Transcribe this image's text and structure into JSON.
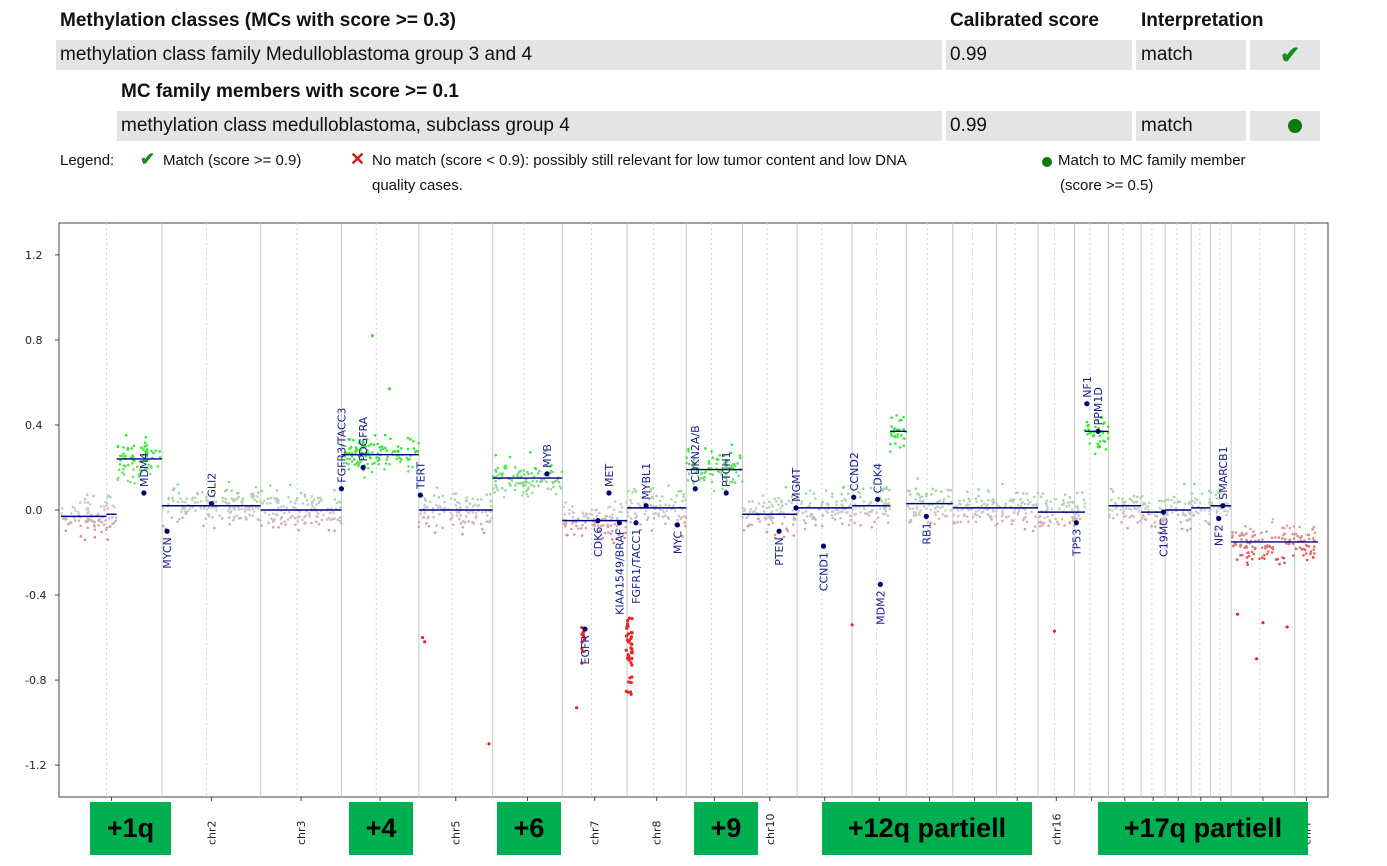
{
  "table": {
    "header_class": "Methylation classes (MCs with score >= 0.3)",
    "header_score": "Calibrated score",
    "header_interp": "Interpretation",
    "row1_class": "methylation class family Medulloblastoma group 3 and 4",
    "row1_score": "0.99",
    "row1_interp": "match",
    "sub_header": "MC family members with score >= 0.1",
    "row2_class": "methylation class medulloblastoma, subclass group 4",
    "row2_score": "0.99",
    "row2_interp": "match"
  },
  "legend": {
    "label": "Legend:",
    "match": "Match (score >= 0.9)",
    "nomatch_1": "No match (score < 0.9): possibly still relevant for low tumor content and low DNA",
    "nomatch_2": "quality cases.",
    "member_1": "Match to MC family member",
    "member_2": "(score >= 0.5)"
  },
  "colors": {
    "gain": "#33dd33",
    "loss": "#ee2222",
    "segment": "#000080",
    "annotation": "#00b050"
  },
  "annotations": [
    "+1q",
    "+4",
    "+6",
    "+9",
    "+12q partiell",
    "+17q partiell"
  ],
  "chart_data": {
    "type": "scatter",
    "ylim": [
      -1.35,
      1.35
    ],
    "yticks": [
      1.2,
      0.8,
      0.4,
      0.0,
      -0.4,
      -0.8,
      -1.2
    ],
    "ytick_labels": [
      "1.2",
      "0.8",
      "0.4",
      "0.0",
      "-0.4",
      "-0.8",
      "-1.2"
    ],
    "chromosomes": [
      {
        "name": "chr1",
        "size": 248,
        "label": ""
      },
      {
        "name": "chr2",
        "size": 242,
        "label": "chr2"
      },
      {
        "name": "chr3",
        "size": 198,
        "label": "chr3"
      },
      {
        "name": "chr4",
        "size": 190,
        "label": ""
      },
      {
        "name": "chr5",
        "size": 181,
        "label": "chr5"
      },
      {
        "name": "chr6",
        "size": 171,
        "label": ""
      },
      {
        "name": "chr7",
        "size": 159,
        "label": "chr7"
      },
      {
        "name": "chr8",
        "size": 145,
        "label": "chr8"
      },
      {
        "name": "chr9",
        "size": 138,
        "label": ""
      },
      {
        "name": "chr10",
        "size": 134,
        "label": "chr10"
      },
      {
        "name": "chr11",
        "size": 135,
        "label": ""
      },
      {
        "name": "chr12",
        "size": 133,
        "label": ""
      },
      {
        "name": "chr13",
        "size": 114,
        "label": ""
      },
      {
        "name": "chr14",
        "size": 107,
        "label": ""
      },
      {
        "name": "chr15",
        "size": 102,
        "label": ""
      },
      {
        "name": "chr16",
        "size": 90,
        "label": "chr16"
      },
      {
        "name": "chr17",
        "size": 83,
        "label": ""
      },
      {
        "name": "chr18",
        "size": 80,
        "label": ""
      },
      {
        "name": "chr19",
        "size": 59,
        "label": ""
      },
      {
        "name": "chr20",
        "size": 64,
        "label": ""
      },
      {
        "name": "chr21",
        "size": 47,
        "label": ""
      },
      {
        "name": "chr22",
        "size": 51,
        "label": ""
      },
      {
        "name": "chrX",
        "size": 156,
        "label": ""
      },
      {
        "name": "chrY",
        "size": 57,
        "label": "chrY"
      }
    ],
    "segments": [
      {
        "chr": "chr1",
        "start": 0,
        "end": 0.45,
        "y": -0.03
      },
      {
        "chr": "chr1",
        "start": 0.45,
        "end": 0.55,
        "y": -0.02
      },
      {
        "chr": "chr1",
        "start": 0.55,
        "end": 1,
        "y": 0.24
      },
      {
        "chr": "chr2",
        "start": 0,
        "end": 1,
        "y": 0.02
      },
      {
        "chr": "chr3",
        "start": 0,
        "end": 1,
        "y": 0.0
      },
      {
        "chr": "chr4",
        "start": 0,
        "end": 1,
        "y": 0.26
      },
      {
        "chr": "chr5",
        "start": 0,
        "end": 1,
        "y": 0.0
      },
      {
        "chr": "chr6",
        "start": 0,
        "end": 1,
        "y": 0.15
      },
      {
        "chr": "chr7",
        "start": 0,
        "end": 1,
        "y": -0.05
      },
      {
        "chr": "chr8",
        "start": 0,
        "end": 1,
        "y": 0.01
      },
      {
        "chr": "chr9",
        "start": 0,
        "end": 1,
        "y": 0.19
      },
      {
        "chr": "chr10",
        "start": 0,
        "end": 1,
        "y": -0.02
      },
      {
        "chr": "chr11",
        "start": 0,
        "end": 1,
        "y": 0.01
      },
      {
        "chr": "chr12",
        "start": 0,
        "end": 0.7,
        "y": 0.02
      },
      {
        "chr": "chr12",
        "start": 0.7,
        "end": 1,
        "y": 0.37
      },
      {
        "chr": "chr13",
        "start": 0,
        "end": 1,
        "y": 0.03
      },
      {
        "chr": "chr14",
        "start": 0,
        "end": 1,
        "y": 0.01
      },
      {
        "chr": "chr15",
        "start": 0,
        "end": 1,
        "y": 0.01
      },
      {
        "chr": "chr16",
        "start": 0,
        "end": 0.5,
        "y": -0.01
      },
      {
        "chr": "chr16",
        "start": 0.5,
        "end": 1,
        "y": -0.01
      },
      {
        "chr": "chr17",
        "start": 0,
        "end": 0.3,
        "y": -0.01
      },
      {
        "chr": "chr17",
        "start": 0.3,
        "end": 1,
        "y": 0.37
      },
      {
        "chr": "chr18",
        "start": 0,
        "end": 1,
        "y": 0.02
      },
      {
        "chr": "chr19",
        "start": 0,
        "end": 1,
        "y": -0.01
      },
      {
        "chr": "chr20",
        "start": 0,
        "end": 1,
        "y": 0.0
      },
      {
        "chr": "chr21",
        "start": 0,
        "end": 1,
        "y": 0.01
      },
      {
        "chr": "chr22",
        "start": 0,
        "end": 1,
        "y": 0.02
      },
      {
        "chr": "chrX",
        "start": 0,
        "end": 1,
        "y": -0.15
      },
      {
        "chr": "chrY",
        "start": 0,
        "end": 1,
        "y": -0.15
      }
    ],
    "genes": [
      {
        "name": "MDM4",
        "chr": "chr1",
        "pos": 0.82,
        "y": 0.08,
        "side": "up"
      },
      {
        "name": "MYCN",
        "chr": "chr2",
        "pos": 0.05,
        "y": -0.1,
        "side": "down"
      },
      {
        "name": "GLI2",
        "chr": "chr2",
        "pos": 0.5,
        "y": 0.03,
        "side": "up"
      },
      {
        "name": "FGFR3/TACC3",
        "chr": "chr3",
        "pos": 1.0,
        "y": 0.1,
        "side": "up"
      },
      {
        "name": "PDGFRA",
        "chr": "chr4",
        "pos": 0.28,
        "y": 0.2,
        "side": "up"
      },
      {
        "name": "TERT",
        "chr": "chr5",
        "pos": 0.02,
        "y": 0.07,
        "side": "up"
      },
      {
        "name": "MYB",
        "chr": "chr6",
        "pos": 0.78,
        "y": 0.17,
        "side": "up"
      },
      {
        "name": "EGFR",
        "chr": "chr7",
        "pos": 0.35,
        "y": -0.56,
        "side": "down"
      },
      {
        "name": "CDK6",
        "chr": "chr7",
        "pos": 0.55,
        "y": -0.05,
        "side": "down"
      },
      {
        "name": "MET",
        "chr": "chr7",
        "pos": 0.72,
        "y": 0.08,
        "side": "up"
      },
      {
        "name": "KIAA1549/BRAF",
        "chr": "chr7",
        "pos": 0.88,
        "y": -0.06,
        "side": "down"
      },
      {
        "name": "FGFR1/TACC1",
        "chr": "chr8",
        "pos": 0.15,
        "y": -0.06,
        "side": "down"
      },
      {
        "name": "MYBL1",
        "chr": "chr8",
        "pos": 0.32,
        "y": 0.02,
        "side": "up"
      },
      {
        "name": "MYC",
        "chr": "chr8",
        "pos": 0.85,
        "y": -0.07,
        "side": "down"
      },
      {
        "name": "CDKN2A/B",
        "chr": "chr9",
        "pos": 0.16,
        "y": 0.1,
        "side": "up"
      },
      {
        "name": "PTCH1",
        "chr": "chr9",
        "pos": 0.71,
        "y": 0.08,
        "side": "up"
      },
      {
        "name": "PTEN",
        "chr": "chr10",
        "pos": 0.67,
        "y": -0.1,
        "side": "down"
      },
      {
        "name": "MGMT",
        "chr": "chr10",
        "pos": 0.98,
        "y": 0.01,
        "side": "up"
      },
      {
        "name": "CCND1",
        "chr": "chr11",
        "pos": 0.48,
        "y": -0.17,
        "side": "down"
      },
      {
        "name": "CCND2",
        "chr": "chr12",
        "pos": 0.03,
        "y": 0.06,
        "side": "up"
      },
      {
        "name": "CDK4",
        "chr": "chr12",
        "pos": 0.47,
        "y": 0.05,
        "side": "up"
      },
      {
        "name": "MDM2",
        "chr": "chr12",
        "pos": 0.52,
        "y": -0.35,
        "side": "down"
      },
      {
        "name": "RB1",
        "chr": "chr13",
        "pos": 0.43,
        "y": -0.03,
        "side": "down"
      },
      {
        "name": "TP53",
        "chr": "chr17",
        "pos": 0.05,
        "y": -0.06,
        "side": "down"
      },
      {
        "name": "NF1",
        "chr": "chr17",
        "pos": 0.36,
        "y": 0.5,
        "side": "up"
      },
      {
        "name": "PPM1D",
        "chr": "chr17",
        "pos": 0.69,
        "y": 0.37,
        "side": "up"
      },
      {
        "name": "C19MC",
        "chr": "chr19",
        "pos": 0.93,
        "y": -0.01,
        "side": "down"
      },
      {
        "name": "SMARCB1",
        "chr": "chr22",
        "pos": 0.6,
        "y": 0.02,
        "side": "up"
      },
      {
        "name": "NF2",
        "chr": "chr22",
        "pos": 0.4,
        "y": -0.04,
        "side": "down"
      }
    ],
    "outliers": [
      {
        "chr": "chr7",
        "pos": 0.22,
        "y": -0.93
      },
      {
        "chr": "chr7",
        "pos": 0.3,
        "y": -0.72
      },
      {
        "chr": "chr5",
        "pos": 0.05,
        "y": -0.6
      },
      {
        "chr": "chr5",
        "pos": 0.08,
        "y": -0.62
      },
      {
        "chr": "chr5",
        "pos": 0.95,
        "y": -1.1
      },
      {
        "chr": "chr4",
        "pos": 0.4,
        "y": 0.82
      },
      {
        "chr": "chr4",
        "pos": 0.62,
        "y": 0.57
      },
      {
        "chr": "chr16",
        "pos": 0.45,
        "y": -0.57
      },
      {
        "chr": "chr12",
        "pos": 0.0,
        "y": -0.54
      },
      {
        "chrX": "chrX",
        "chr": "chrX",
        "pos": 0.4,
        "y": -0.7
      },
      {
        "chr": "chrX",
        "pos": 0.1,
        "y": -0.49
      },
      {
        "chr": "chrX",
        "pos": 0.5,
        "y": -0.53
      },
      {
        "chr": "chrX",
        "pos": 0.88,
        "y": -0.55
      }
    ]
  }
}
